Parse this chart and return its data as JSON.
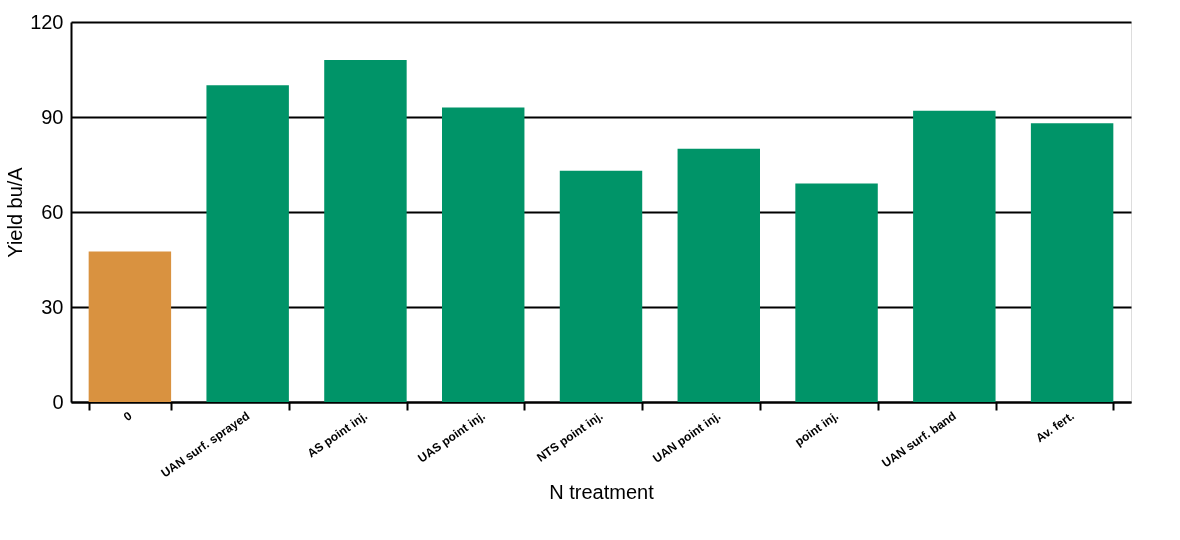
{
  "chart_data": {
    "type": "bar",
    "xlabel": "N treatment",
    "ylabel": "Yield bu/A",
    "categories": [
      "0",
      "UAN surf. sprayed",
      "AS point inj.",
      "UAS point inj.",
      "NTS point inj.",
      "UAN point inj.",
      "point inj.",
      "UAN surf. band",
      "Av. fert."
    ],
    "values": [
      47.5,
      100,
      108,
      93,
      73,
      80,
      69,
      92,
      88
    ],
    "colors": [
      "#d99240",
      "#009468",
      "#009468",
      "#009468",
      "#009468",
      "#009468",
      "#009468",
      "#009468",
      "#009468"
    ],
    "ylim": [
      0,
      120
    ],
    "yticks": [
      0,
      30,
      60,
      90,
      120
    ],
    "grid": "y"
  }
}
